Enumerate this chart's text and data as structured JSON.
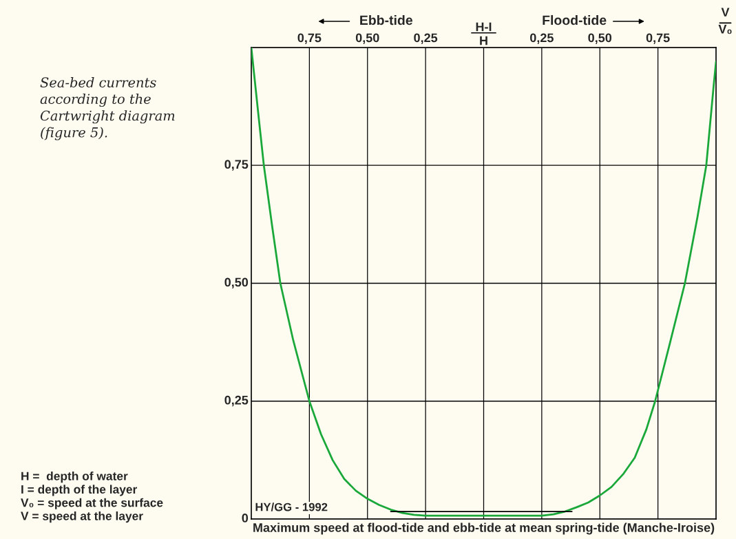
{
  "chart_data": {
    "type": "line",
    "title": "Sea-bed currents\naccording to the\nCartwright diagram\n(figure 5).",
    "xlabel": "H-I\nH",
    "ylabel": "V\nV₀",
    "series": [
      {
        "color": "#1aa83a",
        "x": [
          -1.0,
          -0.97,
          -0.946,
          -0.91,
          -0.875,
          -0.82,
          -0.75,
          -0.7,
          -0.65,
          -0.6,
          -0.55,
          -0.5,
          -0.45,
          -0.4,
          -0.35,
          -0.3,
          -0.25,
          0,
          0.25,
          0.3,
          0.35,
          0.4,
          0.45,
          0.5,
          0.55,
          0.6,
          0.65,
          0.7,
          0.738,
          0.8,
          0.866,
          0.92,
          0.958,
          0.99,
          1.0
        ],
        "values": [
          1.0,
          0.86,
          0.75,
          0.62,
          0.5,
          0.38,
          0.25,
          0.18,
          0.125,
          0.085,
          0.06,
          0.043,
          0.03,
          0.02,
          0.013,
          0.009,
          0.007,
          0.007,
          0.007,
          0.01,
          0.016,
          0.025,
          0.035,
          0.05,
          0.068,
          0.095,
          0.13,
          0.19,
          0.25,
          0.37,
          0.5,
          0.64,
          0.75,
          0.92,
          0.97
        ]
      },
      {
        "color": "#000000",
        "x": [
          -0.4,
          0.38
        ],
        "values": [
          0.016,
          0.016
        ]
      }
    ],
    "xlim": [
      -1,
      1
    ],
    "ylim": [
      0,
      1
    ],
    "xticks": [
      {
        "value": -0.75,
        "label": "0,75"
      },
      {
        "value": -0.5,
        "label": "0,50"
      },
      {
        "value": -0.25,
        "label": "0,25"
      },
      {
        "value": 0,
        "label": null
      },
      {
        "value": 0.25,
        "label": "0,25"
      },
      {
        "value": 0.5,
        "label": "0,50"
      },
      {
        "value": 0.75,
        "label": "0,75"
      }
    ],
    "yticks": [
      {
        "value": 0,
        "label": "0"
      },
      {
        "value": 0.25,
        "label": "0,25"
      },
      {
        "value": 0.5,
        "label": "0,50"
      },
      {
        "value": 0.75,
        "label": "0,75"
      },
      {
        "value": 1,
        "label": null
      }
    ],
    "grid": true,
    "marker": "none",
    "line_style": "solid",
    "annotations": [
      "Ebb-tide",
      "Flood-tide",
      "HY/GG - 1992",
      "Maximum speed at flood-tide and ebb-tide at mean spring-tide (Manche-Iroise)",
      "H =  depth of water\nI = depth of the layer\nV₀ = speed at the surface\nV = speed at the layer"
    ]
  }
}
